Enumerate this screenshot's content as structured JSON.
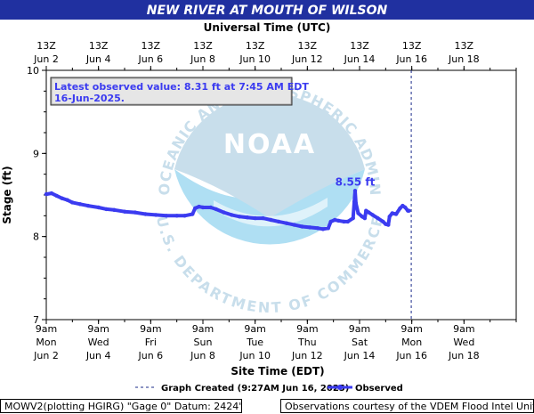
{
  "chart_data": {
    "type": "line",
    "title": "NEW RIVER AT MOUTH OF WILSON",
    "top_axis_label": "Universal Time (UTC)",
    "xlabel": "Site Time (EDT)",
    "ylabel": "Stage (ft)",
    "ylim": [
      7,
      10
    ],
    "y_ticks": [
      "7",
      "8",
      "9",
      "10"
    ],
    "grid": false,
    "legend_position": "bottom",
    "top_ticks": [
      {
        "time": "13Z",
        "date": "Jun 2",
        "day": 2
      },
      {
        "time": "13Z",
        "date": "Jun 4",
        "day": 4
      },
      {
        "time": "13Z",
        "date": "Jun 6",
        "day": 6
      },
      {
        "time": "13Z",
        "date": "Jun 8",
        "day": 8
      },
      {
        "time": "13Z",
        "date": "Jun 10",
        "day": 10
      },
      {
        "time": "13Z",
        "date": "Jun 12",
        "day": 12
      },
      {
        "time": "13Z",
        "date": "Jun 14",
        "day": 14
      },
      {
        "time": "13Z",
        "date": "Jun 16",
        "day": 16
      },
      {
        "time": "13Z",
        "date": "Jun 18",
        "day": 18
      }
    ],
    "bottom_ticks": [
      {
        "time": "9am",
        "weekday": "Mon",
        "date": "Jun 2",
        "day": 2
      },
      {
        "time": "9am",
        "weekday": "Wed",
        "date": "Jun 4",
        "day": 4
      },
      {
        "time": "9am",
        "weekday": "Fri",
        "date": "Jun 6",
        "day": 6
      },
      {
        "time": "9am",
        "weekday": "Sun",
        "date": "Jun 8",
        "day": 8
      },
      {
        "time": "9am",
        "weekday": "Tue",
        "date": "Jun 10",
        "day": 10
      },
      {
        "time": "9am",
        "weekday": "Thu",
        "date": "Jun 12",
        "day": 12
      },
      {
        "time": "9am",
        "weekday": "Sat",
        "date": "Jun 14",
        "day": 14
      },
      {
        "time": "9am",
        "weekday": "Mon",
        "date": "Jun 16",
        "day": 16
      },
      {
        "time": "9am",
        "weekday": "Wed",
        "date": "Jun 18",
        "day": 18
      }
    ],
    "xlim": [
      2,
      20
    ],
    "series": [
      {
        "name": "Observed",
        "color": "#3b3bf0",
        "points": [
          [
            2.0,
            8.51
          ],
          [
            2.2,
            8.52
          ],
          [
            2.4,
            8.49
          ],
          [
            2.6,
            8.46
          ],
          [
            2.8,
            8.44
          ],
          [
            3.0,
            8.41
          ],
          [
            3.3,
            8.39
          ],
          [
            3.6,
            8.37
          ],
          [
            4.0,
            8.35
          ],
          [
            4.3,
            8.33
          ],
          [
            4.6,
            8.32
          ],
          [
            5.0,
            8.3
          ],
          [
            5.4,
            8.29
          ],
          [
            5.8,
            8.27
          ],
          [
            6.2,
            8.26
          ],
          [
            6.6,
            8.25
          ],
          [
            7.0,
            8.25
          ],
          [
            7.3,
            8.25
          ],
          [
            7.6,
            8.27
          ],
          [
            7.7,
            8.34
          ],
          [
            7.85,
            8.36
          ],
          [
            8.0,
            8.35
          ],
          [
            8.3,
            8.35
          ],
          [
            8.5,
            8.33
          ],
          [
            8.8,
            8.29
          ],
          [
            9.1,
            8.26
          ],
          [
            9.4,
            8.24
          ],
          [
            9.7,
            8.23
          ],
          [
            10.0,
            8.22
          ],
          [
            10.3,
            8.22
          ],
          [
            10.6,
            8.2
          ],
          [
            10.9,
            8.18
          ],
          [
            11.2,
            8.16
          ],
          [
            11.5,
            8.14
          ],
          [
            11.8,
            8.12
          ],
          [
            12.1,
            8.11
          ],
          [
            12.4,
            8.1
          ],
          [
            12.6,
            8.09
          ],
          [
            12.8,
            8.1
          ],
          [
            12.9,
            8.18
          ],
          [
            13.05,
            8.2
          ],
          [
            13.2,
            8.19
          ],
          [
            13.4,
            8.18
          ],
          [
            13.55,
            8.18
          ],
          [
            13.75,
            8.22
          ],
          [
            13.8,
            8.42
          ],
          [
            13.83,
            8.55
          ],
          [
            13.86,
            8.4
          ],
          [
            13.95,
            8.28
          ],
          [
            14.1,
            8.24
          ],
          [
            14.2,
            8.22
          ],
          [
            14.25,
            8.31
          ],
          [
            14.35,
            8.29
          ],
          [
            14.5,
            8.26
          ],
          [
            14.7,
            8.22
          ],
          [
            14.9,
            8.18
          ],
          [
            15.0,
            8.15
          ],
          [
            15.1,
            8.14
          ],
          [
            15.15,
            8.24
          ],
          [
            15.25,
            8.28
          ],
          [
            15.4,
            8.27
          ],
          [
            15.55,
            8.34
          ],
          [
            15.65,
            8.37
          ],
          [
            15.75,
            8.35
          ],
          [
            15.85,
            8.31
          ],
          [
            15.89,
            8.31
          ]
        ]
      }
    ],
    "annotations": [
      {
        "text": "Latest observed value: 8.31 ft at 7:45 AM EDT 16-Jun-2025."
      },
      {
        "text": "8.55 ft",
        "x": 13.83,
        "y": 8.55
      }
    ],
    "graph_created_day": 15.98,
    "legend": {
      "graph_created_label": "Graph Created (9:27AM Jun 16, 2025)",
      "observed_label": "Observed"
    }
  },
  "footer": {
    "left": "MOWV2(plotting HGIRG) \"Gage 0\" Datum: 2424'",
    "right": "Observations courtesy of the VDEM Flood Intel Unit"
  },
  "colors": {
    "title_bar": "#2030a0",
    "series": "#3b3bf0",
    "noaa_watermark": "#6fc6ea"
  }
}
